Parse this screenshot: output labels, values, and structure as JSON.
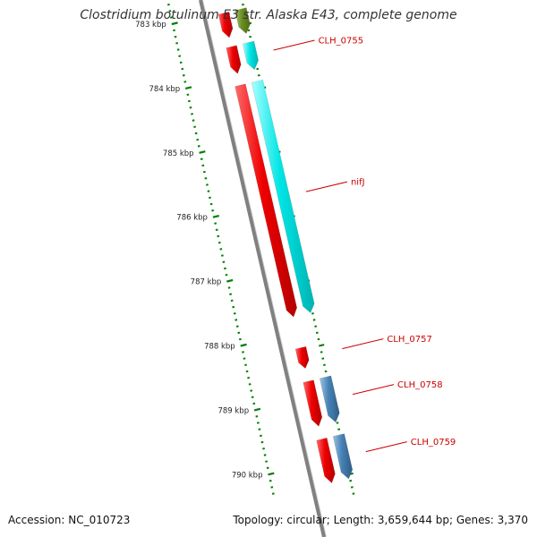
{
  "title": "Clostridium botulinum E3 str. Alaska E43, complete genome",
  "accession": "Accession: NC_010723",
  "summary": "Topology: circular; Length: 3,659,644 bp; Genes: 3,370",
  "ticks": [
    {
      "kbp": 783,
      "label": "783 kbp"
    },
    {
      "kbp": 784,
      "label": "784 kbp"
    },
    {
      "kbp": 785,
      "label": "785 kbp"
    },
    {
      "kbp": 786,
      "label": "786 kbp"
    },
    {
      "kbp": 787,
      "label": "787 kbp"
    },
    {
      "kbp": 788,
      "label": "788 kbp"
    },
    {
      "kbp": 789,
      "label": "789 kbp"
    },
    {
      "kbp": 790,
      "label": "790 kbp"
    }
  ],
  "features": [
    {
      "type": "gene",
      "start_kbp": 782.9,
      "end_kbp": 783.28,
      "track": "gene",
      "color": "#ee0000"
    },
    {
      "type": "cds",
      "start_kbp": 782.9,
      "end_kbp": 783.28,
      "track": "cds",
      "color": "#6b8e23"
    },
    {
      "type": "gene",
      "start_kbp": 783.42,
      "end_kbp": 783.84,
      "track": "gene",
      "color": "#ee0000"
    },
    {
      "type": "cds",
      "start_kbp": 783.42,
      "end_kbp": 783.84,
      "track": "cds",
      "color": "#00e5e5"
    },
    {
      "type": "gene",
      "start_kbp": 784.02,
      "end_kbp": 787.62,
      "track": "gene",
      "color": "#ee0000"
    },
    {
      "type": "cds",
      "start_kbp": 784.02,
      "end_kbp": 787.62,
      "track": "cds",
      "color": "#00e5e5"
    },
    {
      "type": "gene",
      "start_kbp": 788.1,
      "end_kbp": 788.42,
      "track": "gene",
      "color": "#ee0000"
    },
    {
      "type": "gene",
      "start_kbp": 788.62,
      "end_kbp": 789.32,
      "track": "gene",
      "color": "#ee0000"
    },
    {
      "type": "cds",
      "start_kbp": 788.62,
      "end_kbp": 789.32,
      "track": "cds",
      "color": "#4682b4"
    },
    {
      "type": "gene",
      "start_kbp": 789.52,
      "end_kbp": 790.2,
      "track": "gene",
      "color": "#ee0000"
    },
    {
      "type": "cds",
      "start_kbp": 789.52,
      "end_kbp": 790.2,
      "track": "cds",
      "color": "#4682b4"
    }
  ],
  "gene_labels": [
    {
      "text": "CLH_0755",
      "kbp": 783.62
    },
    {
      "text": "nifJ",
      "kbp": 785.82
    },
    {
      "text": "CLH_0757",
      "kbp": 788.26
    },
    {
      "text": "CLH_0758",
      "kbp": 788.97
    },
    {
      "text": "CLH_0759",
      "kbp": 789.86
    }
  ],
  "colors": {
    "backbone": "#808080",
    "tick": "#008000",
    "label_line": "#cc0000"
  }
}
